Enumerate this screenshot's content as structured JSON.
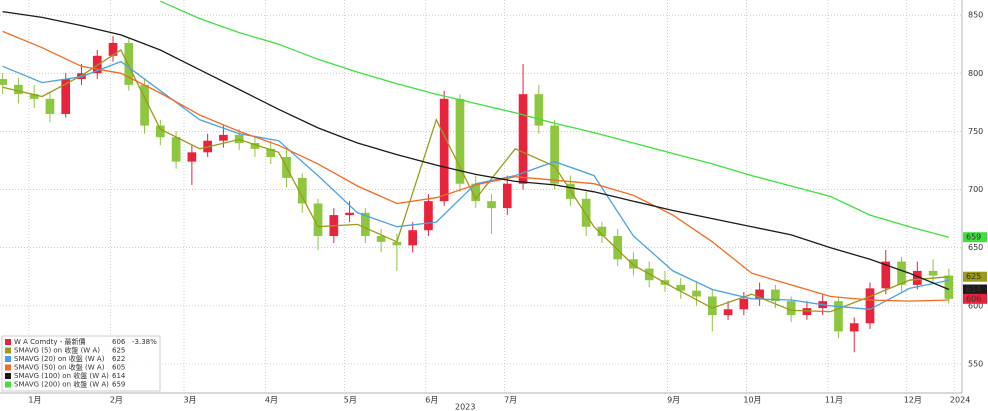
{
  "chart_data": {
    "type": "candlestick",
    "candle_name": "W A Comdty - 最新價",
    "candle_last": 606,
    "candle_change": "-3.38%",
    "up_color": "#e8233c",
    "down_color": "#8dc63f",
    "x": [
      -10,
      -4,
      2,
      8,
      14,
      20,
      26,
      32,
      38,
      44,
      50,
      56,
      62,
      68,
      74,
      80,
      86,
      92,
      98,
      104,
      110,
      116,
      122,
      128,
      134,
      140,
      146,
      152,
      158,
      164,
      170,
      176,
      182,
      188,
      194,
      200,
      206,
      212,
      218,
      224,
      230,
      236,
      242,
      248,
      254,
      260,
      266,
      272,
      278,
      284,
      290,
      296,
      302,
      308,
      314,
      320,
      326,
      332,
      338,
      344,
      350
    ],
    "open": [
      795,
      790,
      782,
      778,
      765,
      795,
      800,
      815,
      826,
      790,
      755,
      745,
      724,
      732,
      742,
      747,
      740,
      735,
      728,
      710,
      688,
      660,
      678,
      680,
      660,
      655,
      652,
      665,
      690,
      778,
      705,
      690,
      684,
      705,
      782,
      755,
      705,
      692,
      668,
      660,
      640,
      632,
      622,
      618,
      613,
      608,
      592,
      597,
      606,
      614,
      604,
      592,
      598,
      604,
      578,
      585,
      615,
      638,
      618,
      630,
      626
    ],
    "high": [
      800,
      796,
      790,
      784,
      800,
      808,
      820,
      832,
      830,
      795,
      760,
      750,
      738,
      748,
      755,
      752,
      746,
      742,
      734,
      714,
      692,
      684,
      690,
      684,
      666,
      662,
      672,
      696,
      785,
      782,
      712,
      696,
      712,
      808,
      790,
      760,
      712,
      698,
      672,
      666,
      646,
      638,
      630,
      624,
      620,
      614,
      604,
      612,
      620,
      618,
      608,
      604,
      610,
      608,
      590,
      620,
      648,
      642,
      638,
      640,
      632
    ],
    "low": [
      782,
      774,
      770,
      758,
      762,
      790,
      795,
      810,
      785,
      748,
      738,
      718,
      704,
      728,
      736,
      734,
      728,
      722,
      702,
      680,
      648,
      654,
      672,
      654,
      646,
      630,
      646,
      660,
      686,
      698,
      684,
      662,
      678,
      700,
      748,
      700,
      686,
      660,
      654,
      634,
      626,
      616,
      612,
      606,
      600,
      578,
      588,
      592,
      600,
      598,
      586,
      588,
      592,
      572,
      560,
      580,
      610,
      612,
      614,
      620,
      602
    ],
    "close": [
      790,
      782,
      778,
      765,
      795,
      800,
      815,
      826,
      790,
      755,
      745,
      724,
      732,
      742,
      747,
      740,
      735,
      728,
      710,
      688,
      660,
      678,
      680,
      660,
      655,
      652,
      665,
      690,
      778,
      705,
      690,
      684,
      705,
      782,
      755,
      705,
      692,
      668,
      660,
      640,
      632,
      622,
      618,
      613,
      608,
      592,
      597,
      606,
      614,
      604,
      592,
      598,
      604,
      578,
      585,
      615,
      638,
      618,
      630,
      626,
      606
    ],
    "lines": {
      "x": [
        -10,
        5,
        20,
        35,
        50,
        65,
        80,
        95,
        110,
        125,
        140,
        155,
        170,
        185,
        200,
        215,
        230,
        245,
        260,
        275,
        290,
        305,
        320,
        335,
        350
      ],
      "series": [
        {
          "name": "SMAVG (5) on 收盤 (W A)",
          "color": "#9a9a1c",
          "last": 625,
          "badge": true,
          "values": [
            788,
            780,
            798,
            820,
            752,
            735,
            743,
            732,
            668,
            670,
            655,
            760,
            692,
            735,
            720,
            668,
            635,
            616,
            598,
            610,
            596,
            595,
            608,
            622,
            625
          ]
        },
        {
          "name": "SMAVG (20) on 收盤 (W A)",
          "color": "#4aa3e0",
          "last": 622,
          "badge": false,
          "values": [
            806,
            792,
            797,
            810,
            785,
            760,
            748,
            742,
            712,
            680,
            668,
            672,
            705,
            712,
            724,
            712,
            660,
            630,
            614,
            606,
            605,
            600,
            597,
            615,
            622
          ]
        },
        {
          "name": "SMAVG (50) on 收盤 (W A)",
          "color": "#f26a21",
          "last": 605,
          "badge": false,
          "values": [
            836,
            822,
            806,
            800,
            783,
            764,
            750,
            738,
            722,
            703,
            688,
            693,
            704,
            711,
            708,
            705,
            695,
            678,
            655,
            628,
            618,
            608,
            605,
            604,
            605
          ]
        },
        {
          "name": "SMAVG (100) on 收盤 (W A)",
          "color": "#1a1a1a",
          "last": 614,
          "badge": true,
          "values": [
            853,
            848,
            841,
            833,
            820,
            803,
            786,
            769,
            753,
            740,
            730,
            721,
            713,
            707,
            704,
            698,
            690,
            682,
            675,
            668,
            661,
            650,
            640,
            628,
            614
          ]
        },
        {
          "name": "SMAVG (200) on 收盤 (W A)",
          "color": "#3ee03e",
          "last": 659,
          "badge": true,
          "values": [
            null,
            null,
            null,
            null,
            862,
            847,
            835,
            825,
            812,
            801,
            791,
            782,
            774,
            766,
            757,
            749,
            740,
            731,
            722,
            712,
            703,
            694,
            678,
            668,
            659
          ]
        }
      ]
    },
    "xlim": [
      -11,
      355
    ],
    "ylim": [
      525,
      863
    ],
    "yticks": [
      550,
      600,
      650,
      700,
      750,
      800,
      850
    ],
    "xticks": [
      {
        "value": 0,
        "label": "1月"
      },
      {
        "value": 31,
        "label": "2月"
      },
      {
        "value": 59,
        "label": "3月"
      },
      {
        "value": 90,
        "label": "4月"
      },
      {
        "value": 120,
        "label": "5月"
      },
      {
        "value": 151,
        "label": "6月"
      },
      {
        "value": 181,
        "label": "7月"
      },
      {
        "value": 243,
        "label": "9月"
      },
      {
        "value": 273,
        "label": "10月"
      },
      {
        "value": 304,
        "label": "11月"
      },
      {
        "value": 334,
        "label": "12月"
      },
      {
        "value": 352,
        "label": "2024"
      }
    ],
    "year_label": {
      "value": 166,
      "label": "2023"
    },
    "grid": true
  }
}
